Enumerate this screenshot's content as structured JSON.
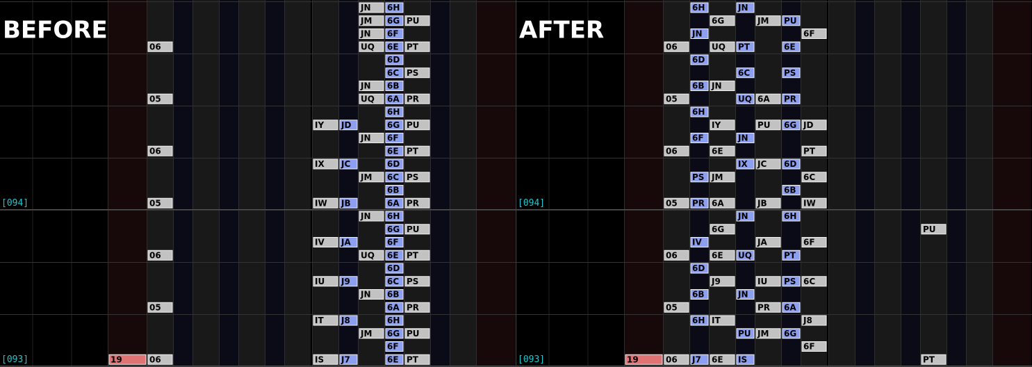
{
  "panels": [
    {
      "heading": "BEFORE",
      "measure_labels": [
        "[094]",
        "[093]"
      ],
      "rows": [
        [
          null,
          null,
          null,
          null,
          null,
          null,
          null,
          null,
          null,
          null,
          "JN",
          "6H",
          null
        ],
        [
          null,
          null,
          null,
          null,
          null,
          null,
          null,
          null,
          null,
          null,
          "JM",
          "6G",
          "PU"
        ],
        [
          null,
          null,
          null,
          null,
          null,
          null,
          null,
          null,
          null,
          null,
          "JN",
          "6F",
          null
        ],
        [
          null,
          "06",
          null,
          null,
          null,
          null,
          null,
          null,
          null,
          null,
          "UQ",
          "6E",
          "PT"
        ],
        [
          null,
          null,
          null,
          null,
          null,
          null,
          null,
          null,
          null,
          null,
          null,
          "6D",
          null
        ],
        [
          null,
          null,
          null,
          null,
          null,
          null,
          null,
          null,
          null,
          null,
          null,
          "6C",
          "PS"
        ],
        [
          null,
          null,
          null,
          null,
          null,
          null,
          null,
          null,
          null,
          null,
          "JN",
          "6B",
          null
        ],
        [
          null,
          "05",
          null,
          null,
          null,
          null,
          null,
          null,
          null,
          null,
          "UQ",
          "6A",
          "PR"
        ],
        [
          null,
          null,
          null,
          null,
          null,
          null,
          null,
          null,
          null,
          null,
          null,
          "6H",
          null
        ],
        [
          null,
          null,
          null,
          null,
          null,
          null,
          null,
          null,
          "IY",
          "JD",
          null,
          "6G",
          "PU"
        ],
        [
          null,
          null,
          null,
          null,
          null,
          null,
          null,
          null,
          null,
          null,
          "JN",
          "6F",
          null
        ],
        [
          null,
          "06",
          null,
          null,
          null,
          null,
          null,
          null,
          null,
          null,
          null,
          "6E",
          "PT"
        ],
        [
          null,
          null,
          null,
          null,
          null,
          null,
          null,
          null,
          "IX",
          "JC",
          null,
          "6D",
          null
        ],
        [
          null,
          null,
          null,
          null,
          null,
          null,
          null,
          null,
          null,
          null,
          "JM",
          "6C",
          "PS"
        ],
        [
          null,
          null,
          null,
          null,
          null,
          null,
          null,
          null,
          null,
          null,
          null,
          "6B",
          null
        ],
        [
          null,
          "05",
          null,
          null,
          null,
          null,
          null,
          null,
          "IW",
          "JB",
          null,
          "6A",
          "PR"
        ],
        [
          null,
          null,
          null,
          null,
          null,
          null,
          null,
          null,
          null,
          null,
          "JN",
          "6H",
          null
        ],
        [
          null,
          null,
          null,
          null,
          null,
          null,
          null,
          null,
          null,
          null,
          null,
          "6G",
          "PU"
        ],
        [
          null,
          null,
          null,
          null,
          null,
          null,
          null,
          null,
          "IV",
          "JA",
          null,
          "6F",
          null
        ],
        [
          null,
          "06",
          null,
          null,
          null,
          null,
          null,
          null,
          null,
          null,
          "UQ",
          "6E",
          "PT"
        ],
        [
          null,
          null,
          null,
          null,
          null,
          null,
          null,
          null,
          null,
          null,
          null,
          "6D",
          null
        ],
        [
          null,
          null,
          null,
          null,
          null,
          null,
          null,
          null,
          "IU",
          "J9",
          null,
          "6C",
          "PS"
        ],
        [
          null,
          null,
          null,
          null,
          null,
          null,
          null,
          null,
          null,
          null,
          "JN",
          "6B",
          null
        ],
        [
          null,
          "05",
          null,
          null,
          null,
          null,
          null,
          null,
          null,
          null,
          null,
          "6A",
          "PR"
        ],
        [
          null,
          null,
          null,
          null,
          null,
          null,
          null,
          null,
          "IT",
          "J8",
          null,
          "6H",
          null
        ],
        [
          null,
          null,
          null,
          null,
          null,
          null,
          null,
          null,
          null,
          null,
          "JM",
          "6G",
          "PU"
        ],
        [
          null,
          null,
          null,
          null,
          null,
          null,
          null,
          null,
          null,
          null,
          null,
          "6F",
          null
        ],
        [
          "19",
          "06",
          null,
          null,
          null,
          null,
          null,
          null,
          "IS",
          "J7",
          null,
          "6E",
          "PT"
        ]
      ]
    },
    {
      "heading": "AFTER",
      "measure_labels": [
        "[094]",
        "[093]"
      ],
      "rows": [
        [
          null,
          null,
          "6H",
          null,
          "JN",
          null,
          null,
          null,
          null,
          null,
          null,
          null,
          null
        ],
        [
          null,
          null,
          null,
          "6G",
          null,
          "JM",
          "PU",
          null,
          null,
          null,
          null,
          null,
          null
        ],
        [
          null,
          null,
          "JN",
          null,
          null,
          null,
          null,
          "6F",
          null,
          null,
          null,
          null,
          null
        ],
        [
          null,
          "06",
          null,
          "UQ",
          "PT",
          null,
          "6E",
          null,
          null,
          null,
          null,
          null,
          null
        ],
        [
          null,
          null,
          "6D",
          null,
          null,
          null,
          null,
          null,
          null,
          null,
          null,
          null,
          null
        ],
        [
          null,
          null,
          null,
          null,
          "6C",
          null,
          "PS",
          null,
          null,
          null,
          null,
          null,
          null
        ],
        [
          null,
          null,
          "6B",
          "JN",
          null,
          null,
          null,
          null,
          null,
          null,
          null,
          null,
          null
        ],
        [
          null,
          "05",
          null,
          null,
          "UQ",
          "6A",
          "PR",
          null,
          null,
          null,
          null,
          null,
          null
        ],
        [
          null,
          null,
          "6H",
          null,
          null,
          null,
          null,
          null,
          null,
          null,
          null,
          null,
          null
        ],
        [
          null,
          null,
          null,
          "IY",
          null,
          "PU",
          "6G",
          "JD",
          null,
          null,
          null,
          null,
          null
        ],
        [
          null,
          null,
          "6F",
          null,
          "JN",
          null,
          null,
          null,
          null,
          null,
          null,
          null,
          null
        ],
        [
          null,
          "06",
          null,
          "6E",
          null,
          null,
          null,
          "PT",
          null,
          null,
          null,
          null,
          null
        ],
        [
          null,
          null,
          null,
          null,
          "IX",
          "JC",
          "6D",
          null,
          null,
          null,
          null,
          null,
          null
        ],
        [
          null,
          null,
          "PS",
          "JM",
          null,
          null,
          null,
          "6C",
          null,
          null,
          null,
          null,
          null
        ],
        [
          null,
          null,
          null,
          null,
          null,
          null,
          "6B",
          null,
          null,
          null,
          null,
          null,
          null
        ],
        [
          null,
          "05",
          "PR",
          "6A",
          null,
          "JB",
          null,
          "IW",
          null,
          null,
          null,
          null,
          null
        ],
        [
          null,
          null,
          null,
          null,
          "JN",
          null,
          "6H",
          null,
          null,
          null,
          null,
          null,
          null
        ],
        [
          null,
          null,
          null,
          "6G",
          null,
          null,
          null,
          null,
          null,
          null,
          null,
          null,
          "PU"
        ],
        [
          null,
          null,
          "IV",
          null,
          null,
          "JA",
          null,
          "6F",
          null,
          null,
          null,
          null,
          null
        ],
        [
          null,
          "06",
          null,
          "6E",
          "UQ",
          null,
          "PT",
          null,
          null,
          null,
          null,
          null,
          null
        ],
        [
          null,
          null,
          "6D",
          null,
          null,
          null,
          null,
          null,
          null,
          null,
          null,
          null,
          null
        ],
        [
          null,
          null,
          null,
          "J9",
          null,
          "IU",
          "PS",
          "6C",
          null,
          null,
          null,
          null,
          null
        ],
        [
          null,
          null,
          "6B",
          null,
          "JN",
          null,
          null,
          null,
          null,
          null,
          null,
          null,
          null
        ],
        [
          null,
          "05",
          null,
          null,
          null,
          "PR",
          "6A",
          null,
          null,
          null,
          null,
          null,
          null
        ],
        [
          null,
          null,
          "6H",
          "IT",
          null,
          null,
          null,
          "J8",
          null,
          null,
          null,
          null,
          null
        ],
        [
          null,
          null,
          null,
          null,
          "PU",
          "JM",
          "6G",
          null,
          null,
          null,
          null,
          null,
          null
        ],
        [
          null,
          null,
          null,
          null,
          null,
          null,
          null,
          "6F",
          null,
          null,
          null,
          null,
          null
        ],
        [
          "19",
          "06",
          "J7",
          "6E",
          "IS",
          null,
          null,
          null,
          null,
          null,
          null,
          null,
          "PT"
        ]
      ]
    }
  ]
}
